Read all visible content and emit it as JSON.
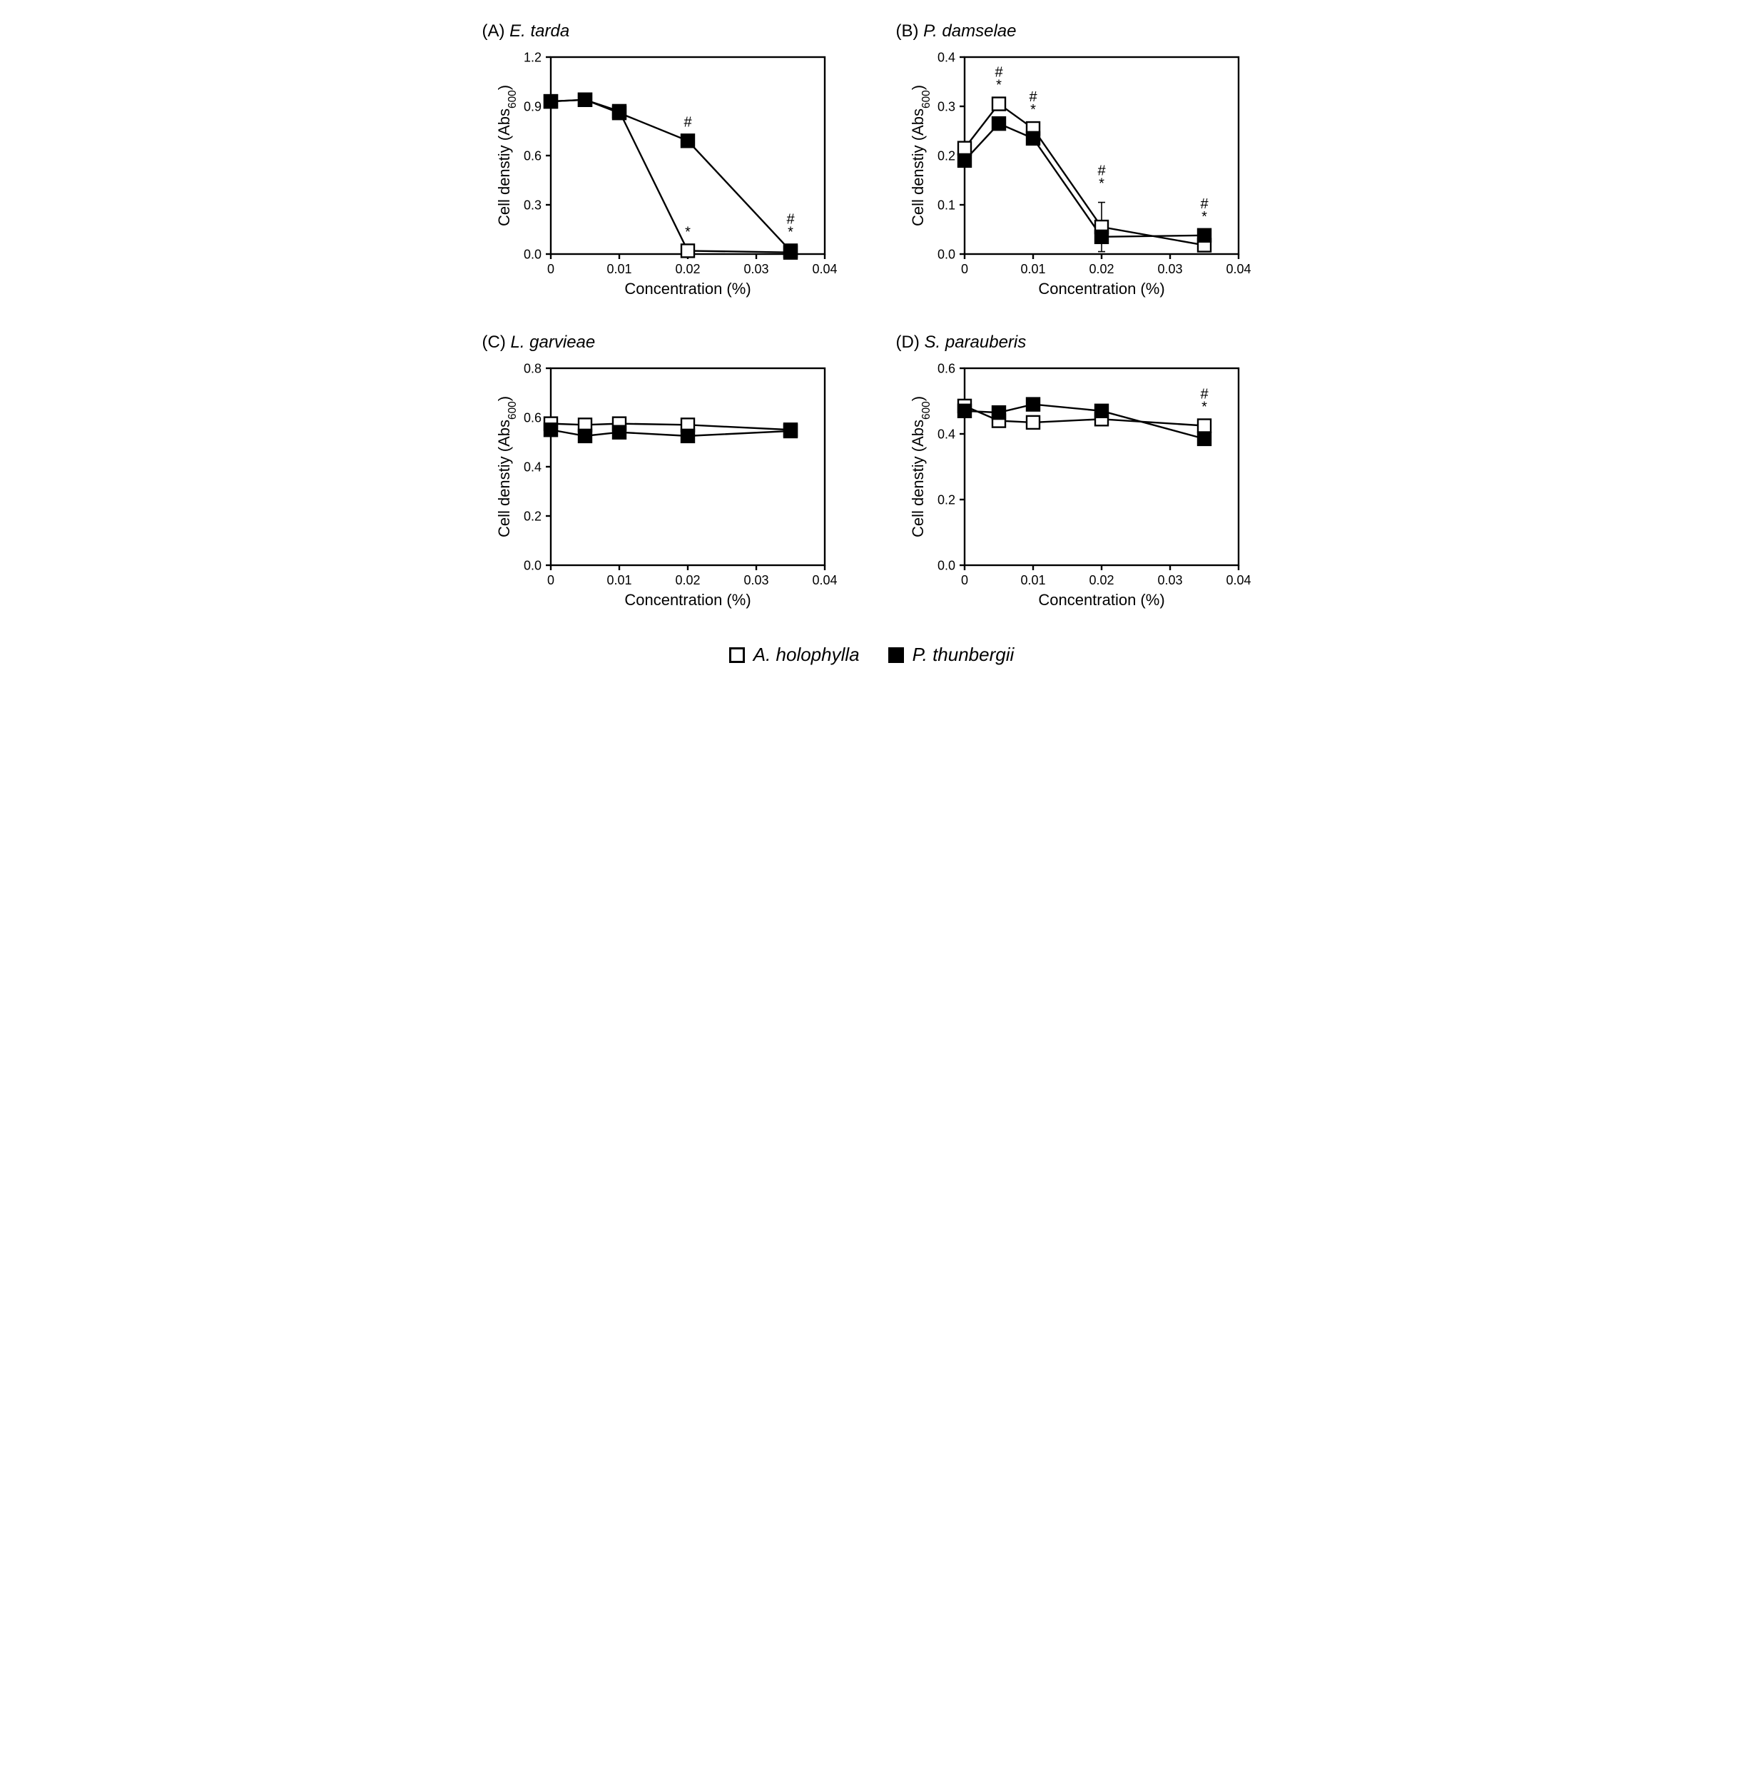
{
  "legend": {
    "open_label": "A. holophylla",
    "filled_label": "P. thunbergii"
  },
  "global": {
    "xlabel": "Concentration (%)",
    "ylabel": "Cell denstiy (Abs",
    "ysub": "600",
    "ylabel_close": ")",
    "xlim": [
      0,
      0.04
    ],
    "xticks": [
      0,
      0.01,
      0.02,
      0.03,
      0.04
    ],
    "xtick_labels": [
      "0",
      "0.01",
      "0.02",
      "0.03",
      "0.04"
    ],
    "marker_size": 9,
    "marker_stroke": 2.4,
    "line_width": 2.4,
    "axis_stroke": 2.4,
    "tick_len": 7,
    "colors": {
      "open_fill": "#ffffff",
      "filled_fill": "#000000",
      "stroke": "#000000",
      "bg": "#ffffff",
      "text": "#000000"
    },
    "label_fontsize": 22,
    "tick_fontsize": 18,
    "title_fontsize": 24,
    "annot_fontsize": 20
  },
  "panels": [
    {
      "id": "A",
      "letter": "(A)",
      "species": "E. tarda",
      "ylim": [
        0,
        1.2
      ],
      "yticks": [
        0,
        0.3,
        0.6,
        0.9,
        1.2
      ],
      "ytick_labels": [
        "0.0",
        "0.3",
        "0.6",
        "0.9",
        "1.2"
      ],
      "series": {
        "open": {
          "x": [
            0,
            0.005,
            0.01,
            0.02,
            0.035
          ],
          "y": [
            0.93,
            0.94,
            0.87,
            0.02,
            0.01
          ]
        },
        "filled": {
          "x": [
            0,
            0.005,
            0.01,
            0.02,
            0.035
          ],
          "y": [
            0.93,
            0.94,
            0.86,
            0.69,
            0.02
          ]
        }
      },
      "annotations": [
        {
          "x": 0.02,
          "symbols": [
            "#"
          ],
          "y_ref": 0.69,
          "dy": [
            20
          ]
        },
        {
          "x": 0.02,
          "symbols": [
            "*"
          ],
          "y_ref": 0.02,
          "dy": [
            20
          ]
        },
        {
          "x": 0.035,
          "symbols": [
            "#",
            "*"
          ],
          "y_ref": 0.02,
          "dy": [
            38,
            20
          ]
        }
      ]
    },
    {
      "id": "B",
      "letter": "(B)",
      "species": "P. damselae",
      "ylim": [
        0,
        0.4
      ],
      "yticks": [
        0,
        0.1,
        0.2,
        0.3,
        0.4
      ],
      "ytick_labels": [
        "0.0",
        "0.1",
        "0.2",
        "0.3",
        "0.4"
      ],
      "series": {
        "open": {
          "x": [
            0,
            0.005,
            0.01,
            0.02,
            0.035
          ],
          "y": [
            0.215,
            0.305,
            0.255,
            0.055,
            0.018
          ]
        },
        "filled": {
          "x": [
            0,
            0.005,
            0.01,
            0.02,
            0.035
          ],
          "y": [
            0.19,
            0.265,
            0.235,
            0.035,
            0.038
          ]
        }
      },
      "error_bars": [
        {
          "series": "open",
          "idx": 3,
          "err": 0.05
        }
      ],
      "annotations": [
        {
          "x": 0.005,
          "symbols": [
            "#",
            "*"
          ],
          "y_ref": 0.305,
          "dy": [
            38,
            20
          ]
        },
        {
          "x": 0.01,
          "symbols": [
            "#",
            "*"
          ],
          "y_ref": 0.255,
          "dy": [
            38,
            20
          ]
        },
        {
          "x": 0.02,
          "symbols": [
            "#",
            "*"
          ],
          "y_ref": 0.105,
          "dy": [
            38,
            20
          ]
        },
        {
          "x": 0.035,
          "symbols": [
            "#",
            "*"
          ],
          "y_ref": 0.038,
          "dy": [
            38,
            20
          ]
        }
      ]
    },
    {
      "id": "C",
      "letter": "(C)",
      "species": "L. garvieae",
      "ylim": [
        0,
        0.8
      ],
      "yticks": [
        0,
        0.2,
        0.4,
        0.6,
        0.8
      ],
      "ytick_labels": [
        "0.0",
        "0.2",
        "0.4",
        "0.6",
        "0.8"
      ],
      "series": {
        "open": {
          "x": [
            0,
            0.005,
            0.01,
            0.02,
            0.035
          ],
          "y": [
            0.575,
            0.57,
            0.575,
            0.57,
            0.55
          ]
        },
        "filled": {
          "x": [
            0,
            0.005,
            0.01,
            0.02,
            0.035
          ],
          "y": [
            0.55,
            0.525,
            0.54,
            0.525,
            0.545
          ]
        }
      },
      "annotations": []
    },
    {
      "id": "D",
      "letter": "(D)",
      "species": "S. parauberis",
      "ylim": [
        0,
        0.6
      ],
      "yticks": [
        0,
        0.2,
        0.4,
        0.6
      ],
      "ytick_labels": [
        "0.0",
        "0.2",
        "0.4",
        "0.6"
      ],
      "series": {
        "open": {
          "x": [
            0,
            0.005,
            0.01,
            0.02,
            0.035
          ],
          "y": [
            0.485,
            0.44,
            0.435,
            0.445,
            0.425
          ]
        },
        "filled": {
          "x": [
            0,
            0.005,
            0.01,
            0.02,
            0.035
          ],
          "y": [
            0.47,
            0.465,
            0.49,
            0.47,
            0.385
          ]
        }
      },
      "annotations": [
        {
          "x": 0.035,
          "symbols": [
            "#",
            "*"
          ],
          "y_ref": 0.425,
          "dy": [
            38,
            20
          ]
        }
      ]
    }
  ]
}
